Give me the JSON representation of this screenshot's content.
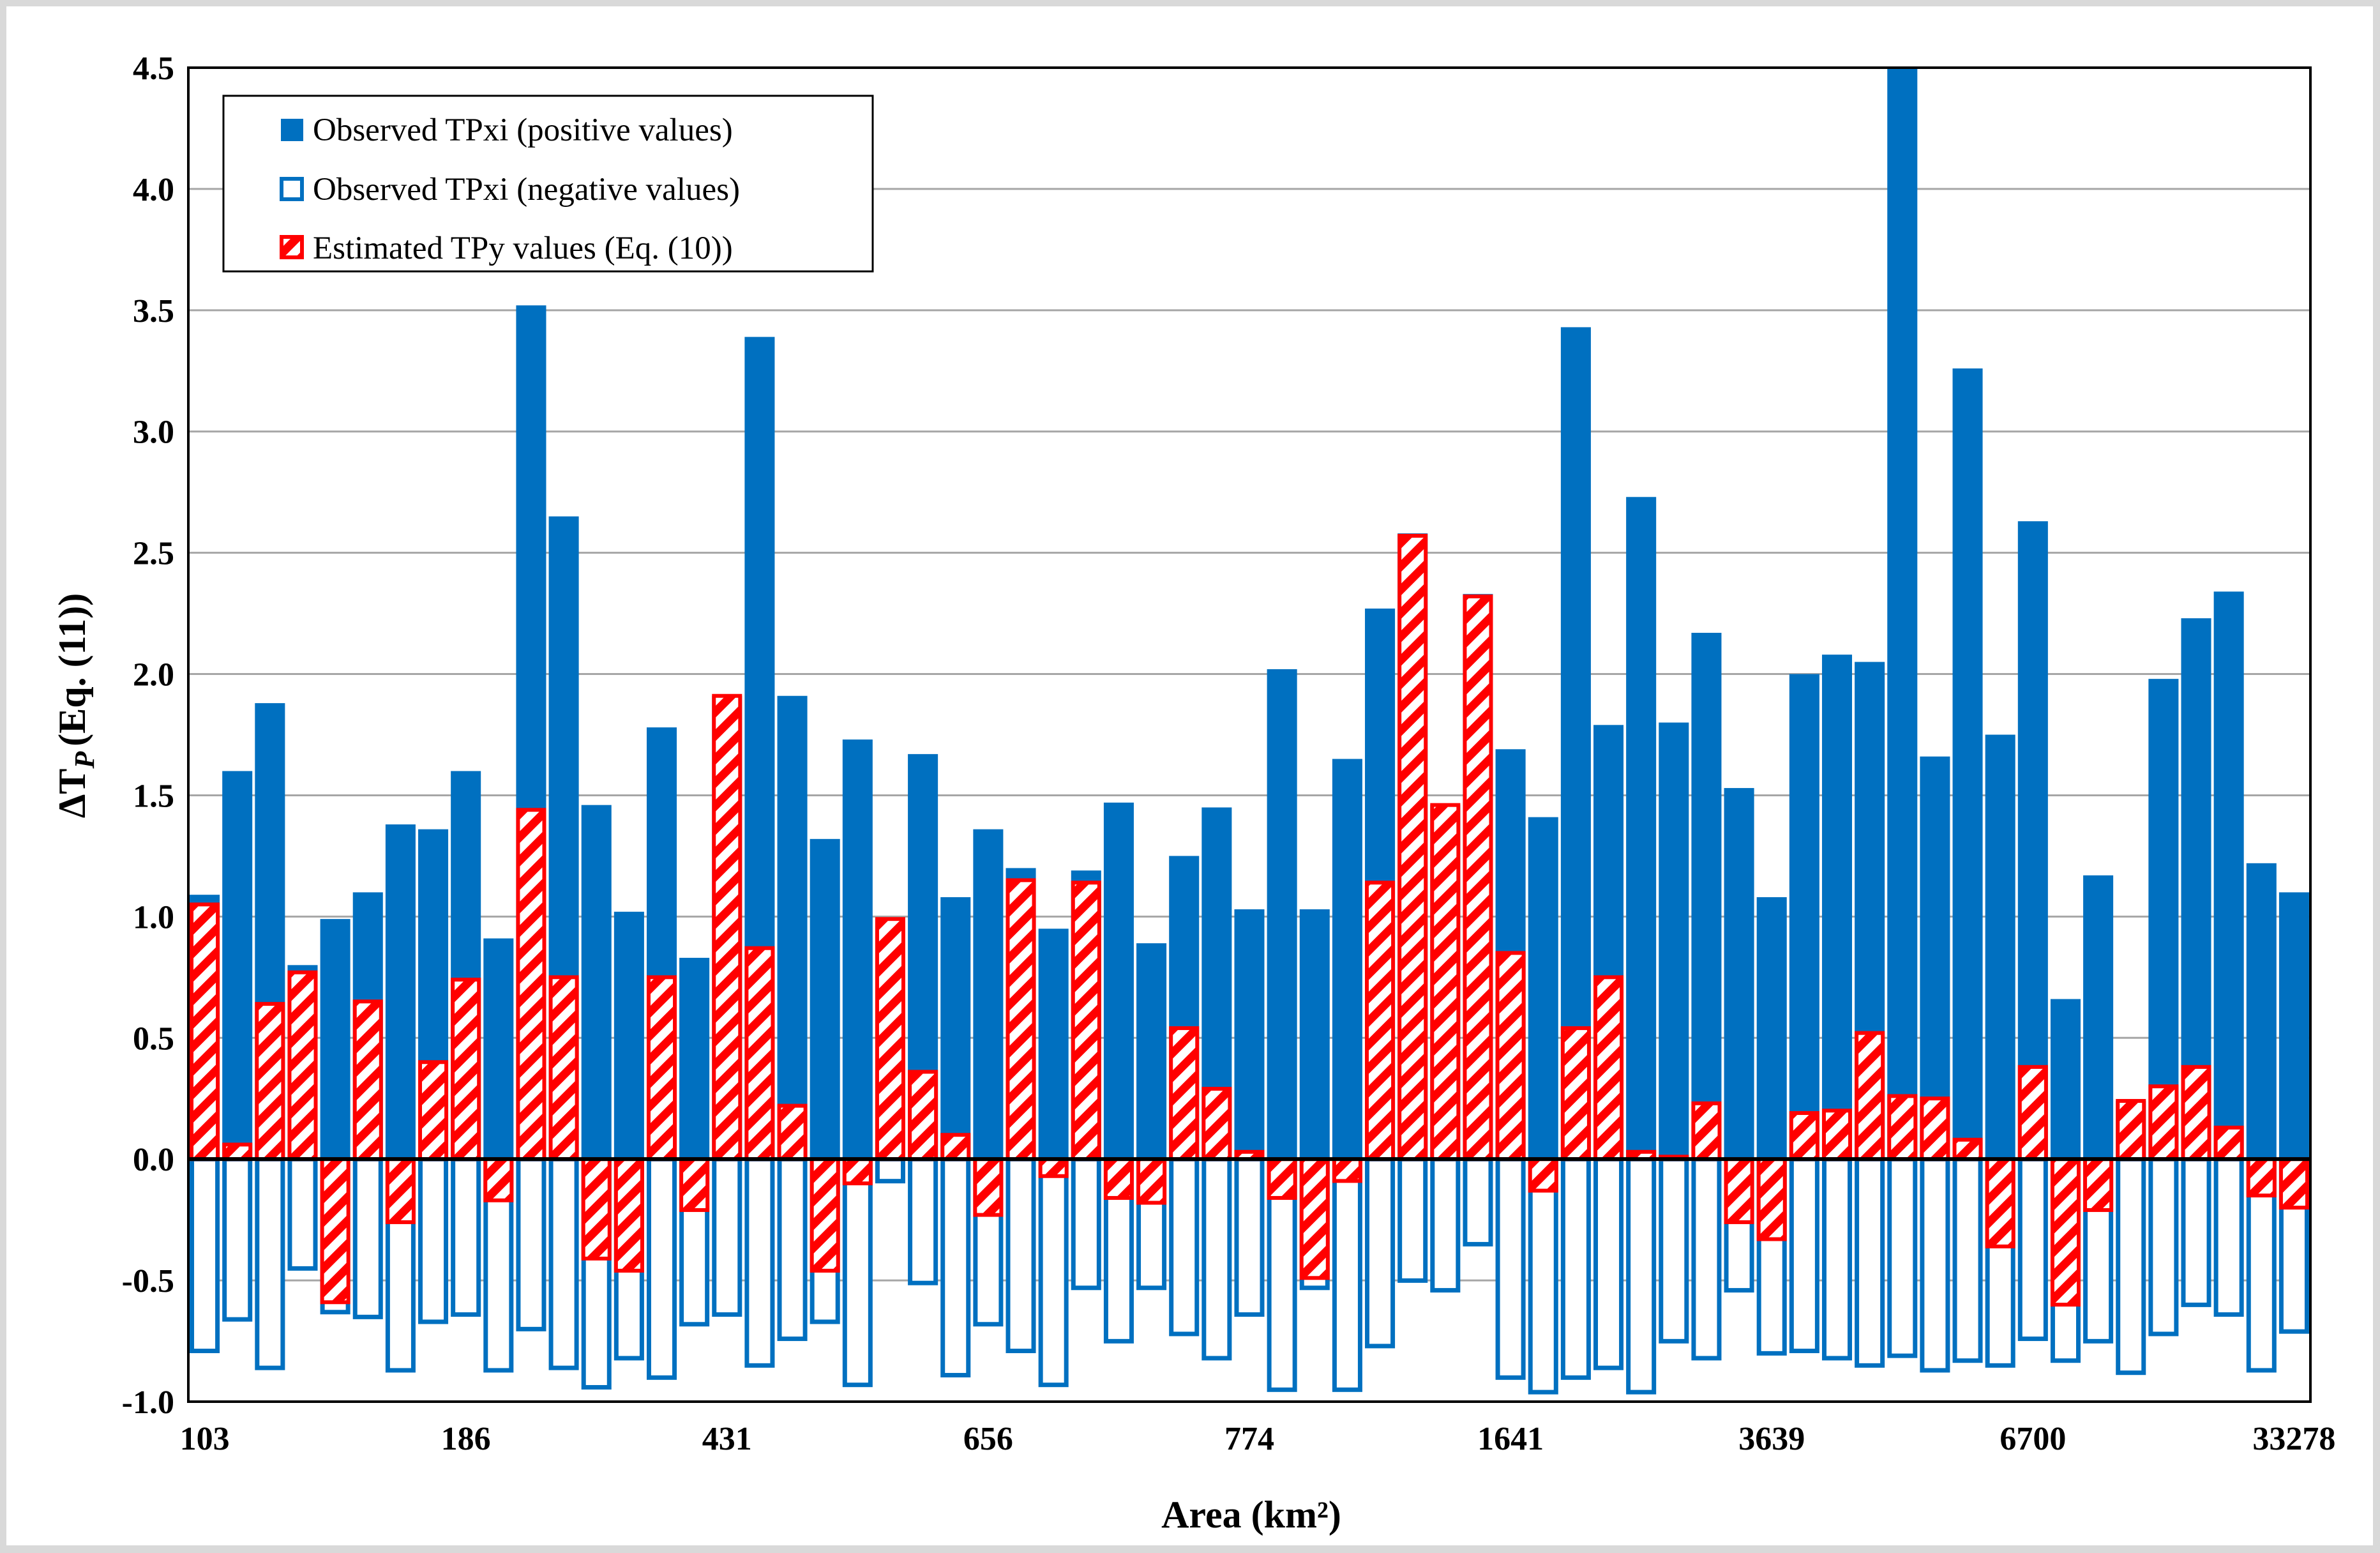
{
  "chart_data": {
    "type": "bar",
    "title": "",
    "xlabel": "Area (km²)",
    "ylabel_main": "ΔT",
    "ylabel_sub": "P",
    "ylabel_suffix": "(Eq. (11))",
    "ylim": [
      -1.0,
      4.5
    ],
    "yticks": [
      -1.0,
      -0.5,
      0.0,
      0.5,
      1.0,
      1.5,
      2.0,
      2.5,
      3.0,
      3.5,
      4.0,
      4.5
    ],
    "ytick_labels": [
      "-1.0",
      "-0.5",
      "0.0",
      "0.5",
      "1.0",
      "1.5",
      "2.0",
      "2.5",
      "3.0",
      "3.5",
      "4.0",
      "4.5"
    ],
    "xtick_labels": [
      "103",
      "186",
      "431",
      "656",
      "774",
      "1641",
      "3639",
      "6700",
      "33278"
    ],
    "xtick_every": 8,
    "grid": true,
    "legend_position": "top-left",
    "colors": {
      "observed": "#0070c0",
      "estimated": "#ff0000",
      "hatch_bg": "#ffffff",
      "zero_line": "#000000",
      "grid": "#a6a6a6"
    },
    "series": [
      {
        "name": "Observed TPxi (positive values)",
        "style": "solid",
        "values": [
          1.09,
          1.6,
          1.88,
          0.8,
          0.99,
          1.1,
          1.38,
          1.36,
          1.6,
          0.91,
          3.52,
          2.65,
          1.46,
          1.02,
          1.78,
          0.83,
          1.91,
          3.39,
          1.91,
          1.32,
          1.73,
          0.99,
          1.67,
          1.08,
          1.36,
          1.2,
          0.95,
          1.19,
          1.47,
          0.89,
          1.25,
          1.45,
          1.03,
          2.02,
          1.03,
          1.65,
          2.27,
          2.58,
          1.46,
          2.33,
          1.69,
          1.41,
          3.43,
          1.79,
          2.73,
          1.8,
          2.17,
          1.53,
          1.08,
          2.0,
          2.08,
          2.05,
          4.5,
          1.66,
          3.26,
          1.75,
          2.63,
          0.66,
          1.17,
          0.24,
          1.98,
          2.23,
          2.34,
          1.22,
          1.1
        ]
      },
      {
        "name": "Observed TPxi (negative values)",
        "style": "outline",
        "values": [
          -0.8,
          -0.67,
          -0.87,
          -0.46,
          -0.64,
          -0.66,
          -0.88,
          -0.68,
          -0.65,
          -0.88,
          -0.71,
          -0.87,
          -0.95,
          -0.83,
          -0.91,
          -0.69,
          -0.65,
          -0.86,
          -0.75,
          -0.68,
          -0.94,
          -0.1,
          -0.52,
          -0.9,
          -0.69,
          -0.8,
          -0.94,
          -0.54,
          -0.76,
          -0.54,
          -0.73,
          -0.83,
          -0.65,
          -0.96,
          -0.54,
          -0.96,
          -0.78,
          -0.51,
          -0.55,
          -0.36,
          -0.91,
          -0.97,
          -0.91,
          -0.87,
          -0.97,
          -0.76,
          -0.83,
          -0.55,
          -0.81,
          -0.8,
          -0.83,
          -0.86,
          -0.82,
          -0.88,
          -0.84,
          -0.86,
          -0.75,
          -0.84,
          -0.76,
          -0.89,
          -0.73,
          -0.61,
          -0.65,
          -0.88,
          -0.72
        ]
      },
      {
        "name": "Estimated TPy values (Eq. (10))",
        "style": "hatched",
        "values": [
          1.05,
          0.06,
          0.64,
          0.77,
          -0.59,
          0.65,
          -0.26,
          0.4,
          0.74,
          -0.17,
          1.44,
          0.75,
          -0.41,
          -0.46,
          0.75,
          -0.21,
          1.91,
          0.87,
          0.22,
          -0.46,
          -0.1,
          0.99,
          0.36,
          0.1,
          -0.23,
          1.15,
          -0.07,
          1.14,
          -0.16,
          -0.18,
          0.54,
          0.29,
          0.03,
          -0.16,
          -0.49,
          -0.09,
          1.14,
          2.57,
          1.46,
          2.32,
          0.85,
          -0.13,
          0.54,
          0.75,
          0.03,
          0.01,
          0.23,
          -0.26,
          -0.33,
          0.19,
          0.2,
          0.52,
          0.26,
          0.25,
          0.08,
          -0.36,
          0.38,
          -0.6,
          -0.21,
          0.24,
          0.3,
          0.38,
          0.13,
          -0.15,
          -0.2
        ]
      }
    ]
  }
}
